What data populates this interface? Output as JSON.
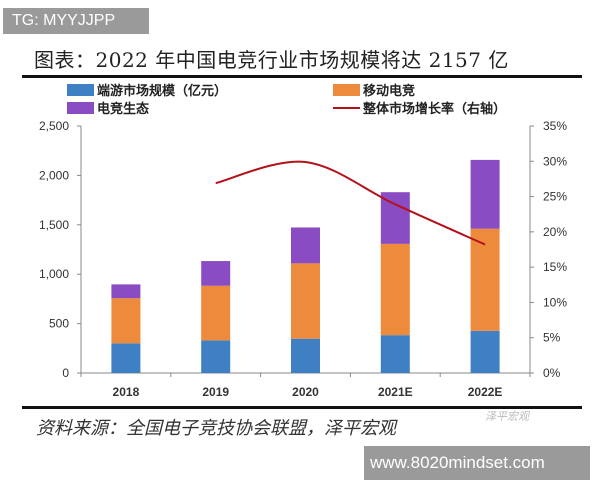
{
  "watermark": "TG: MYYJJPP",
  "title": "图表：2022 年中国电竞行业市场规模将达 2157 亿",
  "source": "资料来源：全国电子竞技协会联盟，泽平宏观",
  "logo_text": "泽平宏观",
  "site": "www.8020mindset.com",
  "chart_data": {
    "type": "bar",
    "stacked": true,
    "categories": [
      "2018",
      "2019",
      "2020",
      "2021E",
      "2022E"
    ],
    "series": [
      {
        "name": "端游市场规模（亿元）",
        "type": "bar",
        "axis": "left",
        "color": "#3f7fc4",
        "values": [
          300,
          330,
          347,
          383,
          427
        ]
      },
      {
        "name": "移动电竞",
        "type": "bar",
        "axis": "left",
        "color": "#ee8a3c",
        "values": [
          457,
          553,
          763,
          924,
          1033
        ]
      },
      {
        "name": "电竞生态",
        "type": "bar",
        "axis": "left",
        "color": "#8a4cc2",
        "values": [
          140,
          250,
          363,
          523,
          697
        ]
      },
      {
        "name": "整体市场增长率（右轴）",
        "type": "line",
        "axis": "right",
        "color": "#b3121b",
        "values": [
          null,
          26.9,
          29.9,
          23.9,
          18.2
        ]
      }
    ],
    "ylim": [
      0,
      2500
    ],
    "yticks": [
      "0",
      "500",
      "1,000",
      "1,500",
      "2,000",
      "2,500"
    ],
    "y2lim": [
      0,
      35
    ],
    "y2ticks": [
      "0%",
      "5%",
      "10%",
      "15%",
      "20%",
      "25%",
      "30%",
      "35%"
    ],
    "grid": false,
    "legend": "top"
  }
}
